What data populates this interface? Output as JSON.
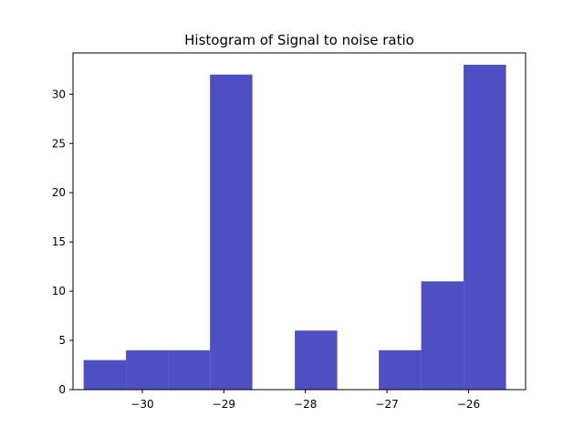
{
  "chart_data": {
    "type": "bar",
    "title": "Histogram of Signal to noise ratio",
    "xlabel": "",
    "ylabel": "",
    "bar_color": "#4f4fc4",
    "xlim": [
      -30.85,
      -25.3
    ],
    "ylim": [
      0,
      34.2
    ],
    "bins": [
      {
        "x0": -30.72,
        "x1": -30.2,
        "value": 3
      },
      {
        "x0": -30.2,
        "x1": -29.68,
        "value": 4
      },
      {
        "x0": -29.68,
        "x1": -29.17,
        "value": 4
      },
      {
        "x0": -29.17,
        "x1": -28.65,
        "value": 32
      },
      {
        "x0": -28.65,
        "x1": -28.13,
        "value": 0
      },
      {
        "x0": -28.13,
        "x1": -27.61,
        "value": 6
      },
      {
        "x0": -27.61,
        "x1": -27.1,
        "value": 0
      },
      {
        "x0": -27.1,
        "x1": -26.58,
        "value": 4
      },
      {
        "x0": -26.58,
        "x1": -26.06,
        "value": 11
      },
      {
        "x0": -26.06,
        "x1": -25.54,
        "value": 33
      }
    ],
    "x_ticks": [
      {
        "value": -30,
        "label": "−30"
      },
      {
        "value": -29,
        "label": "−29"
      },
      {
        "value": -28,
        "label": "−28"
      },
      {
        "value": -27,
        "label": "−27"
      },
      {
        "value": -26,
        "label": "−26"
      }
    ],
    "y_ticks": [
      {
        "value": 0,
        "label": "0"
      },
      {
        "value": 5,
        "label": "5"
      },
      {
        "value": 10,
        "label": "10"
      },
      {
        "value": 15,
        "label": "15"
      },
      {
        "value": 20,
        "label": "20"
      },
      {
        "value": 25,
        "label": "25"
      },
      {
        "value": 30,
        "label": "30"
      }
    ],
    "grid": false,
    "legend": "none"
  }
}
